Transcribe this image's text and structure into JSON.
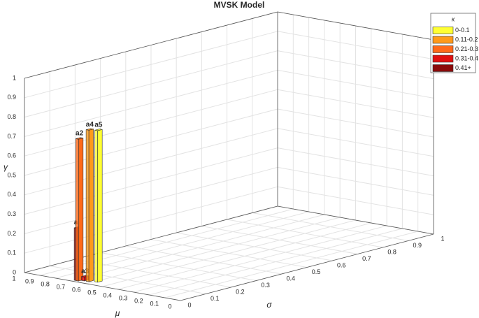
{
  "chart_data": {
    "type": "bar3d",
    "title": "MVSK Model",
    "xlabel": "σ",
    "ylabel": "μ",
    "zlabel": "γ",
    "labels": [
      "a1",
      "a2",
      "a3",
      "a4",
      "a5"
    ],
    "x": [
      0.02,
      0.02,
      0.03,
      0.03,
      0.04
    ],
    "y": [
      0.69,
      0.68,
      0.66,
      0.63,
      0.59
    ],
    "values": [
      0.27,
      0.73,
      0.02,
      0.78,
      0.78
    ],
    "colors": [
      "#8b0a0a",
      "#ff6a1a",
      "#e01010",
      "#ff9a1a",
      "#ffff33"
    ],
    "xlim": [
      0,
      1
    ],
    "ylim": [
      0,
      1
    ],
    "zlim": [
      0,
      1
    ],
    "xticks": [
      0,
      0.1,
      0.2,
      0.3,
      0.4,
      0.5,
      0.6,
      0.7,
      0.8,
      0.9,
      1
    ],
    "yticks": [
      0,
      0.1,
      0.2,
      0.3,
      0.4,
      0.5,
      0.6,
      0.7,
      0.8,
      0.9,
      1
    ],
    "zticks": [
      0,
      0.1,
      0.2,
      0.3,
      0.4,
      0.5,
      0.6,
      0.7,
      0.8,
      0.9,
      1
    ],
    "grid": true,
    "legend": {
      "title": "κ",
      "position": "top-right",
      "entries": [
        {
          "name": "0-0.1",
          "color": "#ffff33"
        },
        {
          "name": "0.11-0.2",
          "color": "#ff9a1a"
        },
        {
          "name": "0.21-0.3",
          "color": "#ff6a1a"
        },
        {
          "name": "0.31-0.4",
          "color": "#e01010"
        },
        {
          "name": "0.41+",
          "color": "#8b0a0a"
        }
      ]
    }
  }
}
